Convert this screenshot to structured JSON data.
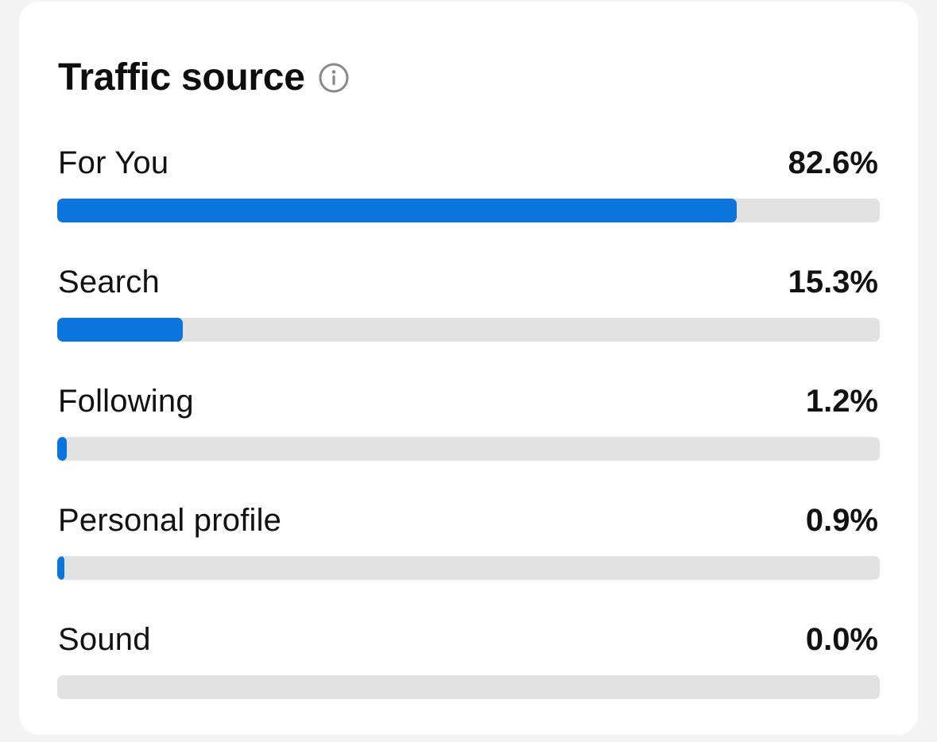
{
  "card": {
    "title": "Traffic source",
    "info_icon": "info-circle-icon"
  },
  "colors": {
    "bar_fill": "#0a75dc",
    "bar_track": "#e2e2e2",
    "card_background": "#ffffff",
    "page_background": "#f4f4f4"
  },
  "sources": [
    {
      "label": "For You",
      "value_text": "82.6%",
      "value": 82.6
    },
    {
      "label": "Search",
      "value_text": "15.3%",
      "value": 15.3
    },
    {
      "label": "Following",
      "value_text": "1.2%",
      "value": 1.2
    },
    {
      "label": "Personal profile",
      "value_text": "0.9%",
      "value": 0.9
    },
    {
      "label": "Sound",
      "value_text": "0.0%",
      "value": 0.0
    }
  ]
}
